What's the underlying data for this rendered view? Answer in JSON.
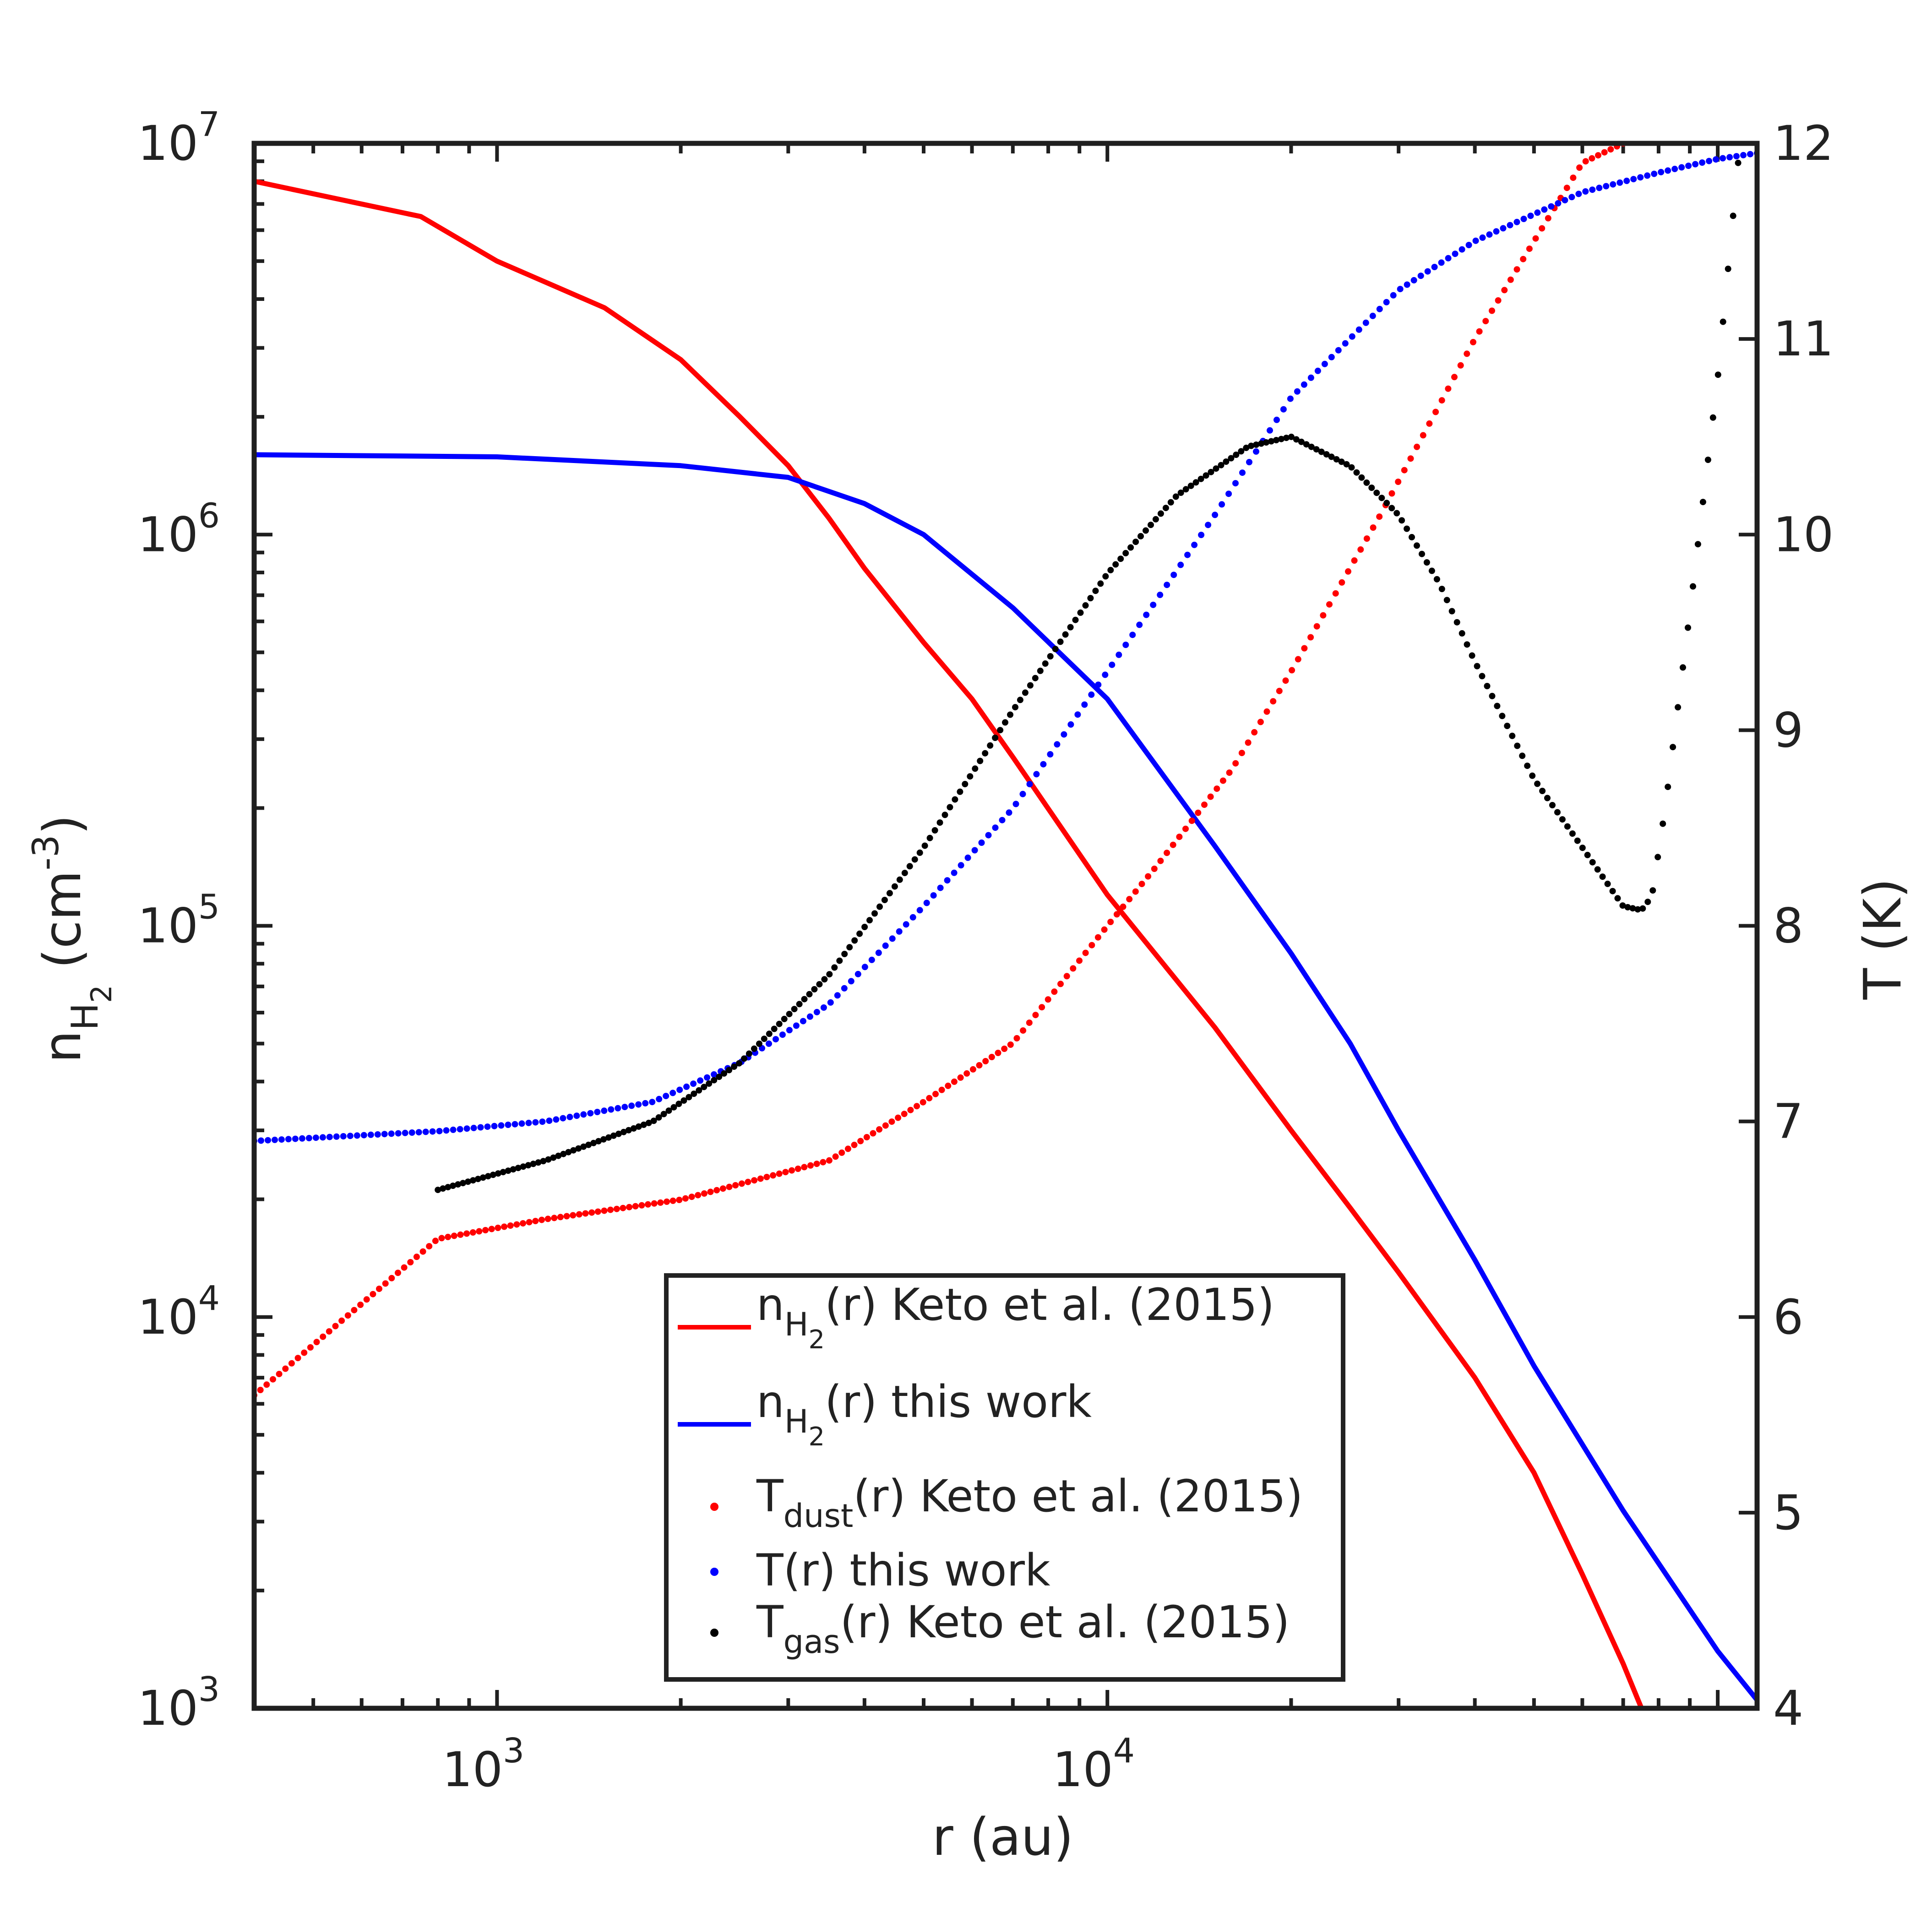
{
  "chart_data": {
    "type": "line",
    "title": "",
    "xlabel": "r (au)",
    "xscale": "log",
    "xlim": [
      400,
      116000
    ],
    "x_ticks": [
      {
        "base": "10",
        "exp": "3",
        "value": 1000
      },
      {
        "base": "10",
        "exp": "4",
        "value": 10000
      }
    ],
    "ylabel_left": {
      "main": "n",
      "sub": "H",
      "subsub": "2",
      "unit_pre": " (cm",
      "unit_exp": "-3",
      "unit_post": ")"
    },
    "yscale_left": "log",
    "ylim_left": [
      1000,
      10000000
    ],
    "y_ticks_left": [
      {
        "base": "10",
        "exp": "3",
        "value": 1000
      },
      {
        "base": "10",
        "exp": "4",
        "value": 10000
      },
      {
        "base": "10",
        "exp": "5",
        "value": 100000
      },
      {
        "base": "10",
        "exp": "6",
        "value": 1000000
      },
      {
        "base": "10",
        "exp": "7",
        "value": 10000000
      }
    ],
    "ylabel_right": "T (K)",
    "ylim_right": [
      4,
      12
    ],
    "y_ticks_right": [
      "4",
      "5",
      "6",
      "7",
      "8",
      "9",
      "10",
      "11",
      "12"
    ],
    "legend_position": "bottom-center",
    "series": [
      {
        "name": "n_H2(r) Keto et al. (2015)",
        "label_main": "n",
        "label_sub": "H",
        "label_subsub": "2",
        "label_rest": "(r) Keto et al. (2015)",
        "color": "#ff0000",
        "style": "line",
        "axis": "left",
        "x": [
          400,
          750,
          1000,
          1500,
          2000,
          2500,
          3000,
          3500,
          4000,
          5000,
          6000,
          7000,
          10000,
          15000,
          20000,
          25000,
          30000,
          40000,
          50000,
          60000,
          70000,
          75000
        ],
        "y": [
          8000000,
          6500000,
          5000000,
          3800000,
          2800000,
          2000000,
          1500000,
          1100000,
          820000,
          530000,
          380000,
          270000,
          120000,
          55000,
          30000,
          19000,
          13000,
          7000,
          4000,
          2200,
          1300,
          1000
        ]
      },
      {
        "name": "n_H2(r) this work",
        "label_main": "n",
        "label_sub": "H",
        "label_subsub": "2",
        "label_rest": "(r) this work",
        "color": "#0000ff",
        "style": "line",
        "axis": "left",
        "x": [
          400,
          1000,
          2000,
          3000,
          4000,
          5000,
          7000,
          10000,
          15000,
          20000,
          25000,
          30000,
          40000,
          50000,
          70000,
          100000,
          116000
        ],
        "y": [
          1600000,
          1580000,
          1500000,
          1400000,
          1200000,
          1000000,
          650000,
          380000,
          160000,
          85000,
          50000,
          30000,
          14000,
          7500,
          3200,
          1400,
          1050
        ]
      },
      {
        "name": "T_dust(r) Keto et al. (2015)",
        "label_main": "T",
        "label_sub": "dust",
        "label_subsub": "",
        "label_rest": "(r) Keto et al. (2015)",
        "color": "#ff0000",
        "style": "dots",
        "axis": "right",
        "x": [
          400,
          800,
          1200,
          2000,
          3500,
          5000,
          7000,
          10000,
          12000,
          16000,
          20000,
          28000,
          40000,
          50000,
          60000,
          70000
        ],
        "y": [
          5.6,
          6.4,
          6.5,
          6.6,
          6.8,
          7.1,
          7.4,
          8.0,
          8.3,
          8.8,
          9.3,
          10.1,
          11.0,
          11.5,
          11.9,
          12.0
        ]
      },
      {
        "name": "T(r) this work",
        "label_main": "T",
        "label_sub": "",
        "label_subsub": "",
        "label_rest": "(r) this work",
        "color": "#0000ff",
        "style": "dots",
        "axis": "right",
        "x": [
          400,
          800,
          1200,
          1800,
          2500,
          3500,
          5000,
          7000,
          10000,
          15000,
          20000,
          30000,
          40000,
          60000,
          80000,
          100000,
          116000
        ],
        "y": [
          6.9,
          6.95,
          7.0,
          7.1,
          7.3,
          7.6,
          8.1,
          8.6,
          9.3,
          10.1,
          10.7,
          11.25,
          11.5,
          11.75,
          11.85,
          11.92,
          11.95
        ]
      },
      {
        "name": "T_gas(r) Keto et al. (2015)",
        "label_main": "T",
        "label_sub": "gas",
        "label_subsub": "",
        "label_rest": "(r) Keto et al. (2015)",
        "color": "#000000",
        "style": "dots",
        "axis": "right",
        "x": [
          800,
          1200,
          1800,
          2500,
          3500,
          5000,
          7000,
          10000,
          13000,
          17000,
          20000,
          25000,
          30000,
          35000,
          40000,
          50000,
          60000,
          70000,
          75000,
          78000,
          82000,
          90000,
          100000,
          108000
        ],
        "y": [
          6.65,
          6.8,
          7.0,
          7.3,
          7.75,
          8.4,
          9.1,
          9.8,
          10.2,
          10.45,
          10.5,
          10.35,
          10.1,
          9.75,
          9.35,
          8.75,
          8.4,
          8.1,
          8.08,
          8.15,
          8.6,
          9.6,
          10.8,
          11.9
        ]
      }
    ]
  }
}
